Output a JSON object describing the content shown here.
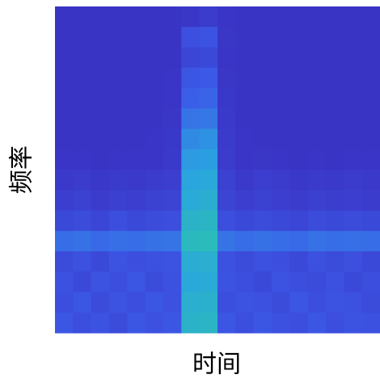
{
  "chart_data": {
    "type": "heatmap",
    "xlabel": "时间",
    "ylabel": "频率",
    "colormap": [
      "#3a2fc0",
      "#3c5ae8",
      "#2aa4e0",
      "#2cc8a4"
    ],
    "zlim": [
      0,
      1
    ],
    "z": [
      [
        0.04,
        0.04,
        0.04,
        0.04,
        0.04,
        0.04,
        0.04,
        0.06,
        0.1,
        0.05,
        0.04,
        0.04,
        0.04,
        0.04,
        0.04,
        0.04,
        0.04,
        0.04
      ],
      [
        0.04,
        0.04,
        0.04,
        0.04,
        0.04,
        0.04,
        0.04,
        0.25,
        0.28,
        0.06,
        0.04,
        0.04,
        0.04,
        0.04,
        0.04,
        0.04,
        0.04,
        0.04
      ],
      [
        0.04,
        0.04,
        0.04,
        0.04,
        0.04,
        0.04,
        0.04,
        0.18,
        0.2,
        0.05,
        0.04,
        0.04,
        0.04,
        0.04,
        0.04,
        0.04,
        0.04,
        0.04
      ],
      [
        0.04,
        0.04,
        0.04,
        0.04,
        0.04,
        0.04,
        0.05,
        0.3,
        0.32,
        0.06,
        0.04,
        0.04,
        0.04,
        0.04,
        0.04,
        0.04,
        0.04,
        0.04
      ],
      [
        0.04,
        0.04,
        0.04,
        0.04,
        0.04,
        0.04,
        0.05,
        0.35,
        0.38,
        0.07,
        0.04,
        0.04,
        0.04,
        0.04,
        0.04,
        0.04,
        0.04,
        0.04
      ],
      [
        0.04,
        0.04,
        0.04,
        0.04,
        0.04,
        0.04,
        0.06,
        0.45,
        0.47,
        0.08,
        0.04,
        0.04,
        0.04,
        0.04,
        0.04,
        0.04,
        0.04,
        0.04
      ],
      [
        0.04,
        0.04,
        0.04,
        0.04,
        0.04,
        0.05,
        0.07,
        0.55,
        0.58,
        0.09,
        0.05,
        0.04,
        0.04,
        0.04,
        0.04,
        0.04,
        0.04,
        0.04
      ],
      [
        0.05,
        0.05,
        0.04,
        0.05,
        0.05,
        0.05,
        0.08,
        0.62,
        0.64,
        0.1,
        0.05,
        0.06,
        0.05,
        0.04,
        0.05,
        0.04,
        0.05,
        0.05
      ],
      [
        0.08,
        0.1,
        0.07,
        0.09,
        0.08,
        0.1,
        0.12,
        0.68,
        0.7,
        0.14,
        0.08,
        0.12,
        0.1,
        0.07,
        0.09,
        0.08,
        0.1,
        0.08
      ],
      [
        0.12,
        0.14,
        0.1,
        0.13,
        0.12,
        0.15,
        0.16,
        0.72,
        0.75,
        0.16,
        0.12,
        0.14,
        0.12,
        0.1,
        0.13,
        0.11,
        0.12,
        0.1
      ],
      [
        0.2,
        0.22,
        0.18,
        0.24,
        0.2,
        0.22,
        0.24,
        0.8,
        0.82,
        0.24,
        0.2,
        0.22,
        0.2,
        0.18,
        0.22,
        0.2,
        0.22,
        0.2
      ],
      [
        0.42,
        0.44,
        0.4,
        0.43,
        0.42,
        0.44,
        0.45,
        0.86,
        0.88,
        0.45,
        0.42,
        0.44,
        0.42,
        0.4,
        0.44,
        0.42,
        0.43,
        0.42
      ],
      [
        0.22,
        0.26,
        0.2,
        0.28,
        0.24,
        0.26,
        0.28,
        0.74,
        0.76,
        0.26,
        0.22,
        0.26,
        0.24,
        0.2,
        0.26,
        0.22,
        0.25,
        0.2
      ],
      [
        0.26,
        0.2,
        0.28,
        0.24,
        0.3,
        0.22,
        0.26,
        0.7,
        0.72,
        0.28,
        0.24,
        0.2,
        0.28,
        0.24,
        0.22,
        0.26,
        0.2,
        0.24
      ],
      [
        0.24,
        0.3,
        0.22,
        0.28,
        0.24,
        0.3,
        0.26,
        0.76,
        0.78,
        0.24,
        0.28,
        0.26,
        0.22,
        0.3,
        0.24,
        0.28,
        0.26,
        0.22
      ],
      [
        0.3,
        0.24,
        0.28,
        0.22,
        0.3,
        0.26,
        0.3,
        0.8,
        0.82,
        0.3,
        0.24,
        0.3,
        0.26,
        0.24,
        0.3,
        0.24,
        0.28,
        0.26
      ]
    ]
  }
}
